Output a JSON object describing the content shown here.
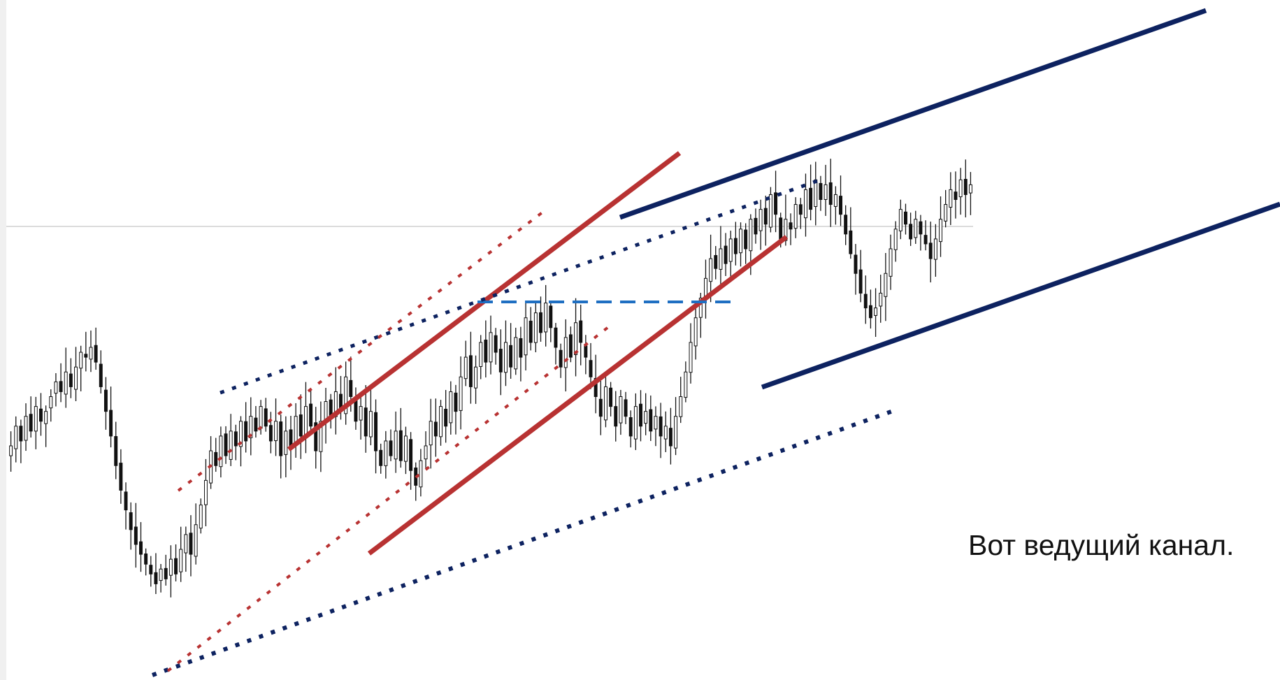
{
  "caption": "Вот ведущий канал.",
  "colors": {
    "background": "#ffffff",
    "candle_stroke": "#111111",
    "bull_fill": "#ffffff",
    "bear_fill": "#111111",
    "navy": "#0d2260",
    "red": "#b83232",
    "blue_dash": "#1f6fc2",
    "ref_line": "#c8c8c8"
  },
  "chart_data": {
    "type": "candlestick",
    "title": "",
    "xlabel": "",
    "ylabel": "",
    "grid": false,
    "legend": "none",
    "price_range": [
      0,
      100
    ],
    "closes": [
      40,
      44,
      41,
      46,
      43,
      48,
      45,
      47,
      50,
      53,
      51,
      55,
      52,
      56,
      59,
      58,
      60,
      57,
      52,
      47,
      42,
      36,
      31,
      27,
      23,
      20,
      18,
      16,
      14,
      12,
      15,
      13,
      17,
      14,
      19,
      22,
      18,
      24,
      28,
      33,
      39,
      36,
      42,
      38,
      43,
      40,
      45,
      41,
      46,
      43,
      48,
      44,
      41,
      45,
      38,
      43,
      40,
      46,
      42,
      48,
      44,
      39,
      45,
      49,
      46,
      51,
      47,
      54,
      50,
      45,
      48,
      42,
      47,
      39,
      36,
      41,
      38,
      43,
      37,
      42,
      35,
      32,
      37,
      40,
      45,
      42,
      48,
      44,
      51,
      47,
      54,
      58,
      52,
      56,
      61,
      57,
      63,
      59,
      55,
      61,
      56,
      62,
      58,
      66,
      61,
      67,
      63,
      69,
      64,
      60,
      56,
      62,
      58,
      65,
      61,
      58,
      54,
      50,
      46,
      52,
      48,
      44,
      50,
      46,
      42,
      48,
      44,
      47,
      43,
      46,
      42,
      44,
      40,
      46,
      50,
      55,
      61,
      66,
      70,
      74,
      78,
      76,
      80,
      77,
      82,
      79,
      84,
      80,
      86,
      83,
      88,
      85,
      91,
      87,
      82,
      86,
      84,
      89,
      87,
      92,
      88,
      94,
      90,
      93,
      89,
      91,
      87,
      83,
      79,
      75,
      71,
      68,
      66,
      68,
      71,
      75,
      80,
      84,
      88,
      85,
      82,
      86,
      83,
      81,
      78,
      82,
      86,
      89,
      92,
      90,
      94,
      91,
      93
    ]
  },
  "annotations": {
    "lines": [
      {
        "id": "navy-upper-channel",
        "style": "solid",
        "color": "navy"
      },
      {
        "id": "navy-lower-channel",
        "style": "solid",
        "color": "navy"
      },
      {
        "id": "red-upper-channel",
        "style": "solid",
        "color": "red"
      },
      {
        "id": "red-lower-channel",
        "style": "solid",
        "color": "red"
      },
      {
        "id": "blue-horizontal-level",
        "style": "dashed",
        "color": "blue_dash"
      },
      {
        "id": "navy-dotted-upper",
        "style": "dotted",
        "color": "navy"
      },
      {
        "id": "navy-dotted-lower",
        "style": "dotted",
        "color": "navy"
      },
      {
        "id": "red-dotted-upper",
        "style": "dotted",
        "color": "red"
      },
      {
        "id": "red-dotted-lower",
        "style": "dotted",
        "color": "red"
      },
      {
        "id": "gray-reference-line",
        "style": "solid",
        "color": "ref_line"
      }
    ]
  }
}
